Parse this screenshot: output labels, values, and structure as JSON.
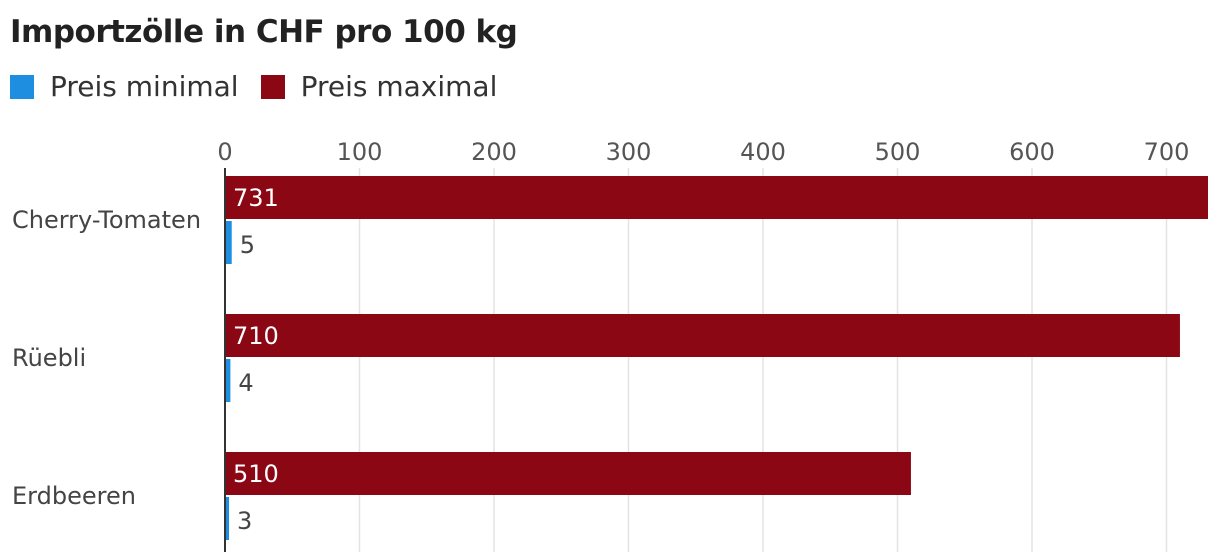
{
  "title": "Importzölle in CHF pro 100 kg",
  "legend": [
    {
      "label": "Preis minimal",
      "color": "#1e8fe0"
    },
    {
      "label": "Preis maximal",
      "color": "#8b0714"
    }
  ],
  "chart_data": {
    "type": "bar",
    "orientation": "horizontal",
    "title": "Importzölle in CHF pro 100 kg",
    "categories": [
      "Cherry-Tomaten",
      "Rüebli",
      "Erdbeeren"
    ],
    "series": [
      {
        "name": "Preis maximal",
        "color": "#8b0714",
        "values": [
          731,
          710,
          510
        ]
      },
      {
        "name": "Preis minimal",
        "color": "#1e8fe0",
        "values": [
          5,
          4,
          3
        ]
      }
    ],
    "xticks": [
      "0",
      "100",
      "200",
      "300",
      "400",
      "500",
      "600",
      "700"
    ],
    "xlim": [
      0,
      731
    ],
    "grid": true,
    "legend_position": "top-left"
  }
}
